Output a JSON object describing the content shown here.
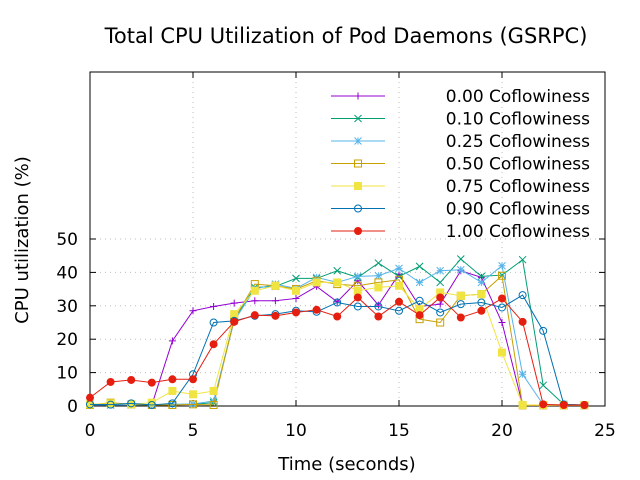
{
  "chart_data": {
    "type": "line",
    "title": "Total CPU Utilization of Pod Daemons (GSRPC)",
    "xlabel": "Time (seconds)",
    "ylabel": "CPU utilization (%)",
    "xlim": [
      0,
      25
    ],
    "ylim": [
      0,
      100
    ],
    "x_ticks": [
      0,
      5,
      10,
      15,
      20,
      25
    ],
    "y_ticks": [
      0,
      10,
      20,
      30,
      40,
      50
    ],
    "grid": true,
    "legend_position": "top-right",
    "x": [
      0,
      1,
      2,
      3,
      4,
      5,
      6,
      7,
      8,
      9,
      10,
      11,
      12,
      13,
      14,
      15,
      16,
      17,
      18,
      19,
      20,
      21,
      22,
      23,
      24
    ],
    "series": [
      {
        "name": "0.00 Coflowiness",
        "color": "#9400d3",
        "marker": "plus",
        "values": [
          0.3,
          0.4,
          0.5,
          0.3,
          19.5,
          28.5,
          29.8,
          30.8,
          31.5,
          31.5,
          32.2,
          35.8,
          31.2,
          37.5,
          30.2,
          39.5,
          29.8,
          30.5,
          40.5,
          38.5,
          25.0,
          0.3,
          0.2,
          0.2,
          0.2
        ]
      },
      {
        "name": "0.10 Coflowiness",
        "color": "#009e73",
        "marker": "x",
        "values": [
          0.3,
          0.3,
          0.4,
          0.3,
          0.5,
          0.5,
          1.0,
          26.0,
          35.5,
          35.8,
          38.2,
          38.2,
          40.5,
          38.5,
          42.8,
          38.8,
          41.8,
          37.0,
          44.0,
          38.8,
          39.2,
          43.8,
          6.2,
          0.5,
          0.3
        ]
      },
      {
        "name": "0.25 Coflowiness",
        "color": "#56b4e9",
        "marker": "star",
        "values": [
          0.3,
          0.3,
          0.3,
          0.4,
          0.5,
          0.6,
          1.5,
          25.5,
          35.0,
          36.5,
          35.2,
          38.5,
          37.0,
          38.8,
          39.0,
          41.2,
          37.0,
          40.5,
          40.8,
          37.0,
          42.0,
          9.5,
          0.4,
          0.3,
          0.3
        ]
      },
      {
        "name": "0.50 Coflowiness",
        "color": "#c8a000",
        "marker": "open-square",
        "values": [
          0.3,
          1.0,
          0.5,
          0.3,
          0.3,
          0.5,
          0.3,
          26.0,
          36.5,
          36.0,
          35.0,
          37.5,
          36.5,
          36.0,
          37.0,
          37.8,
          26.0,
          25.0,
          33.0,
          33.5,
          39.0,
          0.2,
          0.2,
          0.2,
          0.2
        ]
      },
      {
        "name": "0.75 Coflowiness",
        "color": "#f0e442",
        "marker": "filled-square",
        "values": [
          0.5,
          0.8,
          0.5,
          1.0,
          4.5,
          3.5,
          4.5,
          27.5,
          34.5,
          36.0,
          34.5,
          37.0,
          37.0,
          34.5,
          35.5,
          36.0,
          29.0,
          34.0,
          33.0,
          33.5,
          16.0,
          0.3,
          0.3,
          0.3,
          0.3
        ]
      },
      {
        "name": "0.90 Coflowiness",
        "color": "#0072b2",
        "marker": "open-circle",
        "values": [
          0.5,
          0.4,
          0.8,
          0.3,
          0.8,
          9.5,
          25.0,
          25.5,
          27.0,
          27.5,
          28.5,
          28.2,
          31.0,
          29.8,
          29.8,
          28.5,
          31.5,
          28.0,
          30.5,
          31.0,
          29.5,
          33.2,
          22.5,
          0.5,
          0.3
        ]
      },
      {
        "name": "1.00 Coflowiness",
        "color": "#e51e10",
        "marker": "filled-circle",
        "values": [
          2.5,
          7.2,
          7.8,
          7.0,
          8.0,
          8.0,
          18.5,
          25.2,
          27.2,
          27.0,
          28.0,
          28.8,
          26.8,
          32.5,
          26.8,
          31.2,
          27.2,
          32.5,
          26.5,
          28.5,
          32.2,
          25.2,
          0.5,
          0.3,
          0.3
        ]
      }
    ]
  }
}
